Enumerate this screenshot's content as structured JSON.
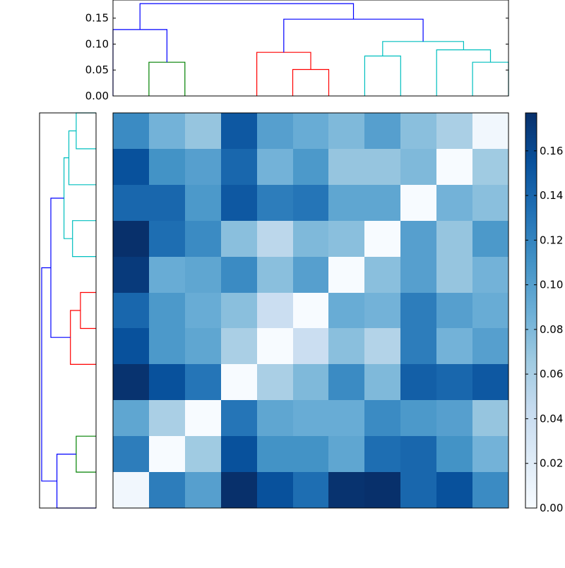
{
  "chart_data": [
    {
      "type": "heatmap",
      "title": "",
      "xlabel": "",
      "ylabel": "",
      "rows": 11,
      "cols": 11,
      "colormap": "Blues",
      "vmin": 0.0,
      "vmax": 0.177,
      "colorbar": {
        "ticks": [
          0.0,
          0.02,
          0.04,
          0.06,
          0.08,
          0.1,
          0.12,
          0.14,
          0.16
        ],
        "tick_labels": [
          "0.00",
          "0.02",
          "0.04",
          "0.06",
          "0.08",
          "0.10",
          "0.12",
          "0.14",
          "0.16"
        ]
      },
      "values": [
        [
          0.115,
          0.085,
          0.07,
          0.15,
          0.1,
          0.09,
          0.08,
          0.1,
          0.075,
          0.06,
          0.005
        ],
        [
          0.155,
          0.11,
          0.1,
          0.14,
          0.085,
          0.105,
          0.07,
          0.07,
          0.08,
          0.0,
          0.065
        ],
        [
          0.14,
          0.14,
          0.105,
          0.15,
          0.125,
          0.13,
          0.095,
          0.095,
          0.0,
          0.085,
          0.075
        ],
        [
          0.177,
          0.135,
          0.115,
          0.075,
          0.05,
          0.08,
          0.075,
          0.0,
          0.1,
          0.07,
          0.105
        ],
        [
          0.17,
          0.09,
          0.095,
          0.115,
          0.075,
          0.1,
          0.0,
          0.075,
          0.1,
          0.07,
          0.085
        ],
        [
          0.14,
          0.105,
          0.09,
          0.075,
          0.04,
          0.0,
          0.09,
          0.085,
          0.125,
          0.1,
          0.09
        ],
        [
          0.155,
          0.105,
          0.095,
          0.06,
          0.0,
          0.04,
          0.075,
          0.055,
          0.125,
          0.085,
          0.1
        ],
        [
          0.175,
          0.155,
          0.13,
          0.0,
          0.06,
          0.08,
          0.115,
          0.08,
          0.145,
          0.14,
          0.15
        ],
        [
          0.095,
          0.06,
          0.0,
          0.13,
          0.095,
          0.09,
          0.09,
          0.115,
          0.105,
          0.1,
          0.07
        ],
        [
          0.125,
          0.0,
          0.065,
          0.155,
          0.11,
          0.11,
          0.095,
          0.135,
          0.14,
          0.11,
          0.085
        ],
        [
          0.005,
          0.125,
          0.1,
          0.177,
          0.155,
          0.135,
          0.175,
          0.177,
          0.14,
          0.155,
          0.115
        ]
      ]
    },
    {
      "type": "line",
      "role": "column-dendrogram",
      "ylim": [
        0,
        0.185
      ],
      "yticks": [
        0.0,
        0.05,
        0.1,
        0.15
      ],
      "ytick_labels": [
        "0.00",
        "0.05",
        "0.10",
        "0.15"
      ],
      "grid": false,
      "links": [
        {
          "color": "#008000",
          "x": [
            5,
            5,
            15,
            15
          ],
          "y": [
            0.0,
            0.065,
            0.065,
            0.0
          ]
        },
        {
          "color": "#0000ff",
          "x": [
            -5,
            -5,
            10,
            10
          ],
          "y": [
            0.0,
            0.128,
            0.128,
            0.065
          ]
        },
        {
          "color": "#ff0000",
          "x": [
            45,
            45,
            55,
            55
          ],
          "y": [
            0.0,
            0.051,
            0.051,
            0.0
          ]
        },
        {
          "color": "#ff0000",
          "x": [
            35,
            35,
            50,
            50
          ],
          "y": [
            0.0,
            0.084,
            0.084,
            0.051
          ]
        },
        {
          "color": "#00bfbf",
          "x": [
            65,
            65,
            75,
            75
          ],
          "y": [
            0.0,
            0.077,
            0.077,
            0.0
          ]
        },
        {
          "color": "#00bfbf",
          "x": [
            95,
            95,
            105,
            105
          ],
          "y": [
            0.0,
            0.065,
            0.065,
            0.0
          ]
        },
        {
          "color": "#00bfbf",
          "x": [
            85,
            85,
            100,
            100
          ],
          "y": [
            0.0,
            0.089,
            0.089,
            0.065
          ]
        },
        {
          "color": "#00bfbf",
          "x": [
            70,
            70,
            92.5,
            92.5
          ],
          "y": [
            0.077,
            0.105,
            0.105,
            0.089
          ]
        },
        {
          "color": "#0000ff",
          "x": [
            42.5,
            42.5,
            81.25,
            81.25
          ],
          "y": [
            0.084,
            0.148,
            0.148,
            0.105
          ]
        },
        {
          "color": "#0000ff",
          "x": [
            2.5,
            2.5,
            61.875,
            61.875
          ],
          "y": [
            0.128,
            0.178,
            0.178,
            0.148
          ]
        }
      ]
    },
    {
      "type": "line",
      "role": "row-dendrogram",
      "xlim": [
        0,
        0.185
      ],
      "grid": false,
      "links": [
        {
          "color": "#008000",
          "x": [
            5,
            5,
            15,
            15
          ],
          "y": [
            0.0,
            0.065,
            0.065,
            0.0
          ]
        },
        {
          "color": "#0000ff",
          "x": [
            -5,
            -5,
            10,
            10
          ],
          "y": [
            0.0,
            0.128,
            0.128,
            0.065
          ]
        },
        {
          "color": "#ff0000",
          "x": [
            45,
            45,
            55,
            55
          ],
          "y": [
            0.0,
            0.051,
            0.051,
            0.0
          ]
        },
        {
          "color": "#ff0000",
          "x": [
            35,
            35,
            50,
            50
          ],
          "y": [
            0.0,
            0.084,
            0.084,
            0.051
          ]
        },
        {
          "color": "#00bfbf",
          "x": [
            65,
            65,
            75,
            75
          ],
          "y": [
            0.0,
            0.077,
            0.077,
            0.0
          ]
        },
        {
          "color": "#00bfbf",
          "x": [
            95,
            95,
            105,
            105
          ],
          "y": [
            0.0,
            0.065,
            0.065,
            0.0
          ]
        },
        {
          "color": "#00bfbf",
          "x": [
            85,
            85,
            100,
            100
          ],
          "y": [
            0.0,
            0.089,
            0.089,
            0.065
          ]
        },
        {
          "color": "#00bfbf",
          "x": [
            70,
            70,
            92.5,
            92.5
          ],
          "y": [
            0.077,
            0.105,
            0.105,
            0.089
          ]
        },
        {
          "color": "#0000ff",
          "x": [
            42.5,
            42.5,
            81.25,
            81.25
          ],
          "y": [
            0.084,
            0.148,
            0.148,
            0.105
          ]
        },
        {
          "color": "#0000ff",
          "x": [
            2.5,
            2.5,
            61.875,
            61.875
          ],
          "y": [
            0.128,
            0.178,
            0.178,
            0.148
          ]
        }
      ]
    }
  ]
}
